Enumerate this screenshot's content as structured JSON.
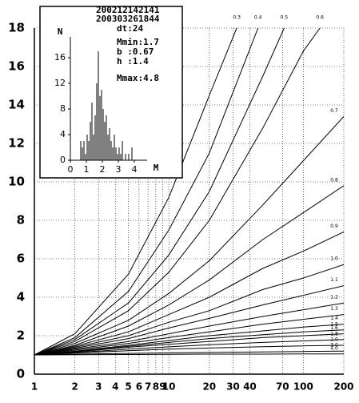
{
  "chart_data": [
    {
      "type": "line",
      "xlog": true,
      "grid": true,
      "color": "#000000",
      "xlim": [
        1,
        200
      ],
      "ylim": [
        0,
        18
      ],
      "xticks": [
        1,
        2,
        3,
        4,
        5,
        6,
        7,
        8,
        9,
        10,
        20,
        30,
        40,
        70,
        100,
        200
      ],
      "yticks": [
        0,
        2,
        4,
        6,
        8,
        10,
        12,
        14,
        16,
        18
      ],
      "series": [
        {
          "name": "0.3",
          "x": [
            1,
            2,
            5,
            10,
            20,
            32
          ],
          "values": [
            1,
            2.1,
            5.2,
            9.2,
            14.5,
            18
          ]
        },
        {
          "name": "0.4",
          "x": [
            1,
            2,
            5,
            10,
            20,
            46
          ],
          "values": [
            1,
            1.9,
            4.3,
            7.5,
            11.5,
            18
          ]
        },
        {
          "name": "0.5",
          "x": [
            1,
            2,
            5,
            10,
            20,
            50,
            72
          ],
          "values": [
            1,
            1.8,
            3.7,
            6.2,
            9.5,
            15.5,
            18
          ]
        },
        {
          "name": "0.6",
          "x": [
            1,
            2,
            5,
            10,
            20,
            50,
            100,
            133
          ],
          "values": [
            1,
            1.7,
            3.3,
            5.3,
            8,
            12.8,
            16.8,
            18
          ]
        },
        {
          "name": "0.7",
          "x": [
            1,
            2,
            5,
            10,
            20,
            50,
            100,
            200
          ],
          "values": [
            1,
            1.6,
            2.8,
            4.2,
            5.9,
            8.8,
            11.1,
            13.4
          ]
        },
        {
          "name": "0.8",
          "x": [
            1,
            2,
            5,
            10,
            20,
            50,
            100,
            200
          ],
          "values": [
            1,
            1.5,
            2.5,
            3.6,
            4.9,
            7,
            8.4,
            9.8
          ]
        },
        {
          "name": "0.9",
          "x": [
            1,
            2,
            5,
            10,
            20,
            50,
            100,
            200
          ],
          "values": [
            1,
            1.45,
            2.2,
            3.1,
            4,
            5.5,
            6.4,
            7.4
          ]
        },
        {
          "name": "1.0",
          "x": [
            1,
            2,
            5,
            10,
            20,
            50,
            100,
            200
          ],
          "values": [
            1,
            1.4,
            2,
            2.7,
            3.3,
            4.4,
            5,
            5.7
          ]
        },
        {
          "name": "1.1",
          "x": [
            1,
            2,
            5,
            10,
            20,
            50,
            100,
            200
          ],
          "values": [
            1,
            1.35,
            1.85,
            2.4,
            2.9,
            3.6,
            4.1,
            4.6
          ]
        },
        {
          "name": "1.2",
          "x": [
            1,
            2,
            5,
            10,
            20,
            50,
            100,
            200
          ],
          "values": [
            1,
            1.3,
            1.7,
            2.1,
            2.5,
            3,
            3.35,
            3.7
          ]
        },
        {
          "name": "1.3",
          "x": [
            1,
            2,
            5,
            10,
            20,
            50,
            100,
            200
          ],
          "values": [
            1,
            1.25,
            1.6,
            1.9,
            2.2,
            2.6,
            2.85,
            3.1
          ]
        },
        {
          "name": "1.4",
          "x": [
            1,
            2,
            5,
            10,
            20,
            50,
            100,
            200
          ],
          "values": [
            1,
            1.2,
            1.5,
            1.75,
            2,
            2.25,
            2.45,
            2.6
          ]
        },
        {
          "name": "1.5",
          "x": [
            1,
            2,
            5,
            10,
            20,
            50,
            100,
            200
          ],
          "values": [
            1,
            1.18,
            1.45,
            1.65,
            1.85,
            2.05,
            2.2,
            2.3
          ]
        },
        {
          "name": "1.6",
          "x": [
            1,
            2,
            5,
            10,
            20,
            50,
            100,
            200
          ],
          "values": [
            1,
            1.15,
            1.4,
            1.55,
            1.7,
            1.9,
            2,
            2.1
          ]
        },
        {
          "name": "1.8",
          "x": [
            1,
            2,
            5,
            10,
            20,
            50,
            100,
            200
          ],
          "values": [
            1,
            1.12,
            1.3,
            1.42,
            1.53,
            1.65,
            1.73,
            1.8
          ]
        },
        {
          "name": "2.0",
          "x": [
            1,
            2,
            5,
            10,
            20,
            50,
            100,
            200
          ],
          "values": [
            1,
            1.1,
            1.22,
            1.3,
            1.36,
            1.43,
            1.47,
            1.5
          ]
        },
        {
          "name": "3.0",
          "x": [
            1,
            2,
            5,
            10,
            20,
            50,
            100,
            200
          ],
          "values": [
            1,
            1.04,
            1.08,
            1.11,
            1.13,
            1.16,
            1.18,
            1.2
          ]
        },
        {
          "name": "4.0",
          "x": [
            1,
            2,
            5,
            10,
            20,
            50,
            100,
            200
          ],
          "values": [
            1,
            1.01,
            1.02,
            1.03,
            1.04,
            1.04,
            1.05,
            1.05
          ]
        }
      ]
    },
    {
      "type": "histogram",
      "color": "#000000",
      "x_label": "M",
      "y_label": "N",
      "xlim": [
        0,
        4.5
      ],
      "ylim": [
        0,
        18
      ],
      "xticks": [
        0,
        1,
        2,
        3,
        4
      ],
      "yticks": [
        0,
        4,
        8,
        12,
        16
      ],
      "bins": [
        0.5,
        0.6,
        0.7,
        0.8,
        0.9,
        1.0,
        1.1,
        1.2,
        1.3,
        1.4,
        1.5,
        1.6,
        1.7,
        1.8,
        1.9,
        2.0,
        2.1,
        2.2,
        2.3,
        2.4,
        2.5,
        2.6,
        2.7,
        2.8,
        2.9,
        3.0,
        3.1,
        3.2,
        3.3,
        3.4,
        3.5,
        3.6,
        3.7,
        3.8,
        3.9,
        4.0
      ],
      "values": [
        0,
        3,
        2,
        3,
        1,
        4,
        3,
        6,
        9,
        4,
        7,
        12,
        17,
        10,
        11,
        8,
        6,
        7,
        4,
        5,
        3,
        2,
        4,
        2,
        1,
        2,
        1,
        3,
        0,
        1,
        0,
        1,
        0,
        2,
        0
      ],
      "annotations": [
        "200212142141",
        "200303261844",
        "dt:24",
        "Mmin:1.7",
        "b :0.67",
        "h :1.4",
        "Mmax:4.8"
      ]
    }
  ]
}
